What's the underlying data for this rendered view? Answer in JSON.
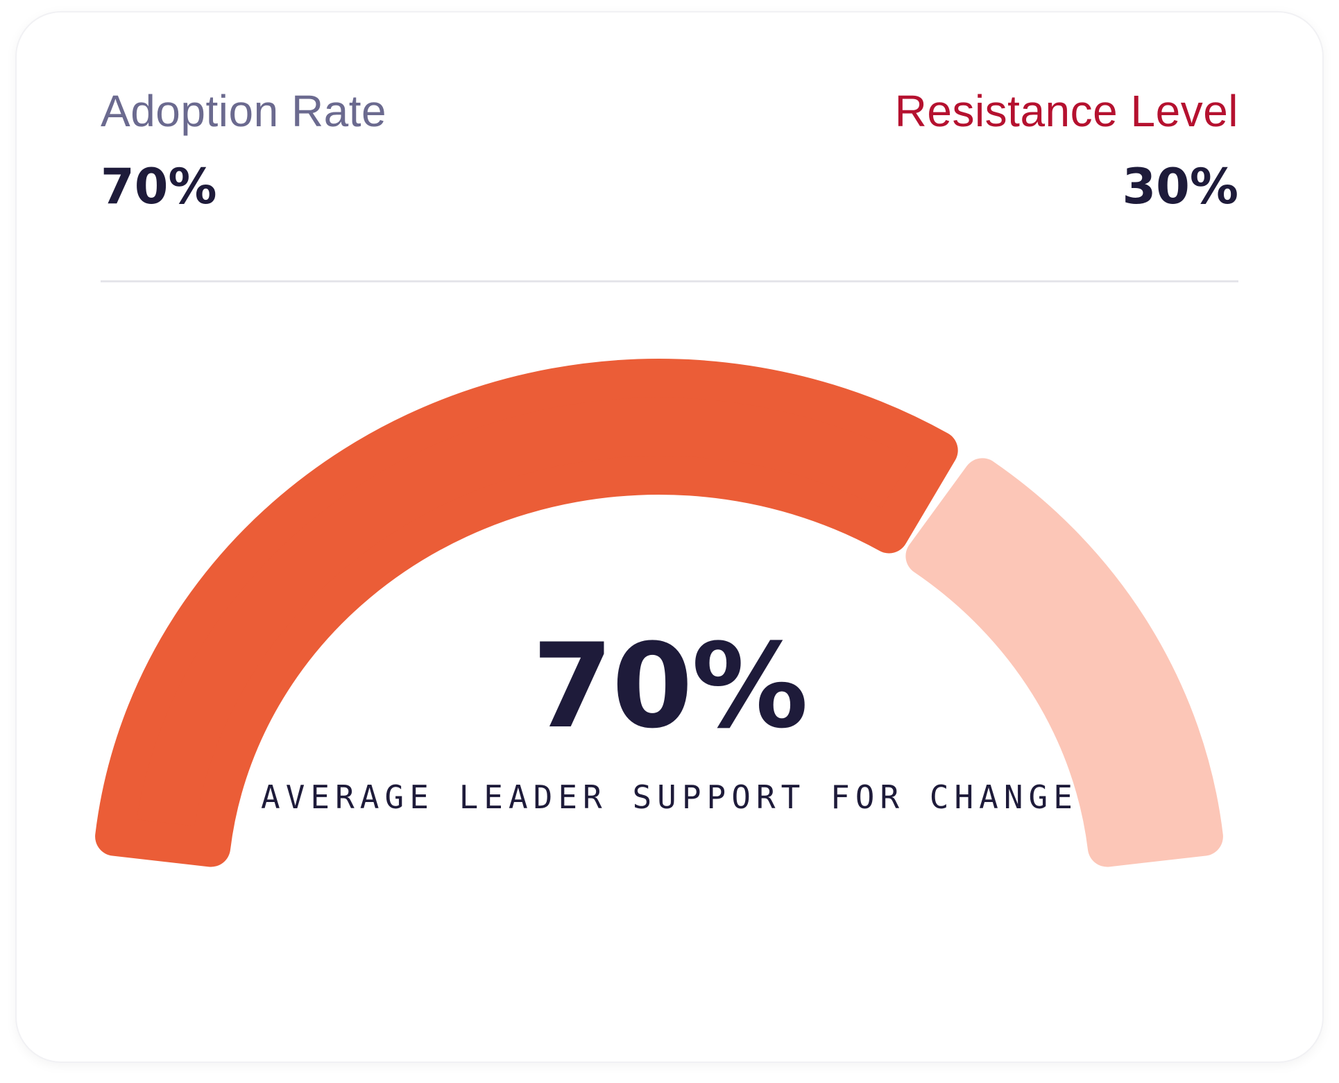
{
  "stats": {
    "adoption": {
      "label": "Adoption Rate",
      "value": "70%"
    },
    "resistance": {
      "label": "Resistance Level",
      "value": "30%"
    }
  },
  "gauge": {
    "value_text": "70%",
    "caption": "AVERAGE LEADER SUPPORT FOR CHANGE"
  },
  "colors": {
    "adoption_label": "#6b6a8f",
    "resistance_label": "#b5112f",
    "value_text": "#1e1b3a",
    "filled": "#eb5d37",
    "remaining": "#fcc6b7"
  },
  "chart_data": {
    "type": "gauge",
    "segments": [
      {
        "name": "Adoption Rate",
        "value": 70
      },
      {
        "name": "Resistance Level",
        "value": 30
      }
    ],
    "total": 100
  }
}
